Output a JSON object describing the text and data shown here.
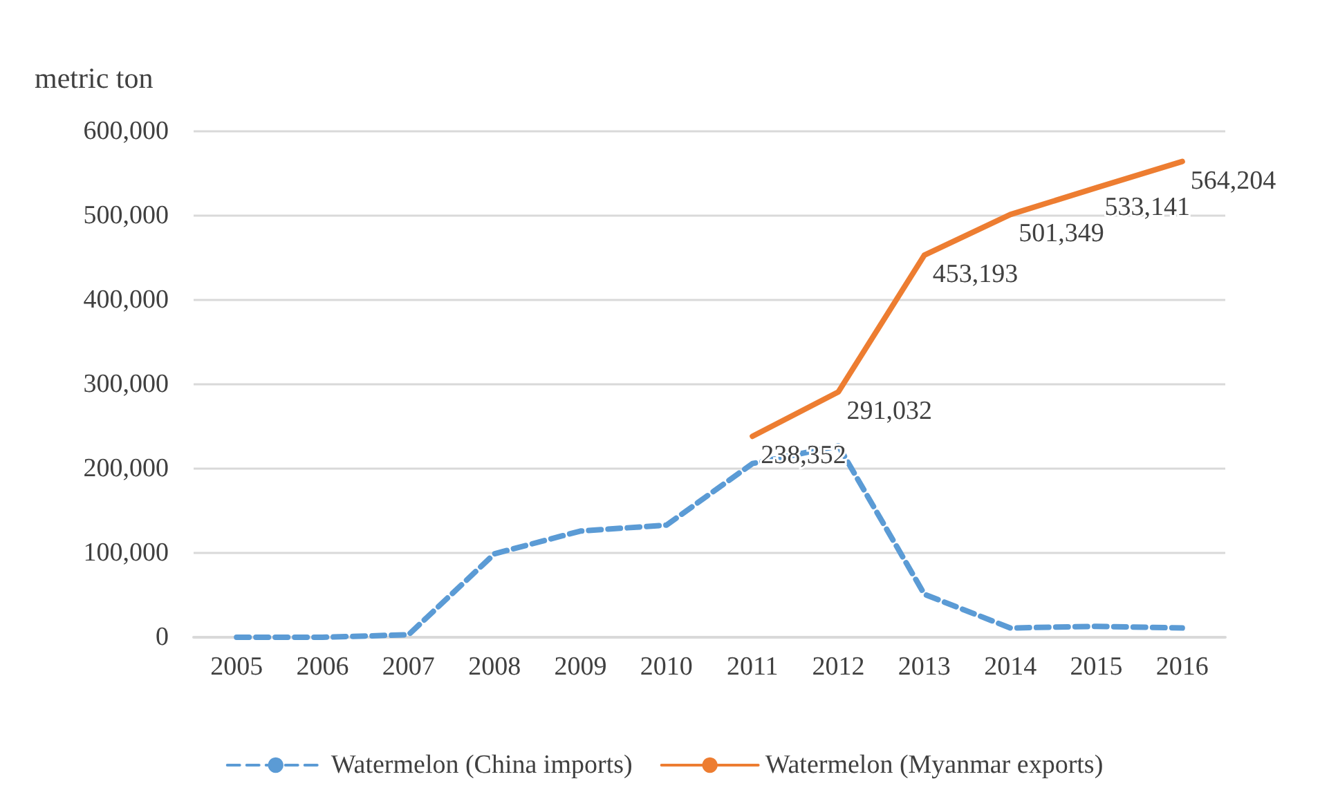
{
  "chart_data": {
    "type": "line",
    "ylabel": "metric ton",
    "categories": [
      "2005",
      "2006",
      "2007",
      "2008",
      "2009",
      "2010",
      "2011",
      "2012",
      "2013",
      "2014",
      "2015",
      "2016"
    ],
    "series": [
      {
        "name": "Watermelon (China imports)",
        "color": "#5b9bd5",
        "line_style": "dashed",
        "values": [
          0,
          0,
          3000,
          99000,
          126000,
          133000,
          206000,
          227000,
          51000,
          11000,
          13000,
          11000
        ]
      },
      {
        "name": "Watermelon (Myanmar exports)",
        "color": "#ed7d31",
        "line_style": "solid",
        "values": [
          null,
          null,
          null,
          null,
          null,
          null,
          238352,
          291032,
          453193,
          501349,
          533141,
          564204
        ],
        "value_labels": [
          null,
          null,
          null,
          null,
          null,
          null,
          "238,352",
          "291,032",
          "453,193",
          "501,349",
          "533,141",
          "564,204"
        ]
      }
    ],
    "ylim": [
      0,
      600000
    ],
    "yticks": [
      0,
      {
        "value": 100000,
        "label": "100,000"
      },
      {
        "value": 200000,
        "label": "200,000"
      },
      {
        "value": 300000,
        "label": "300,000"
      },
      {
        "value": 400000,
        "label": "400,000"
      },
      {
        "value": 500000,
        "label": "500,000"
      },
      {
        "value": 600000,
        "label": "600,000"
      }
    ],
    "grid": "y",
    "legend": "bottom",
    "marker": "none"
  }
}
